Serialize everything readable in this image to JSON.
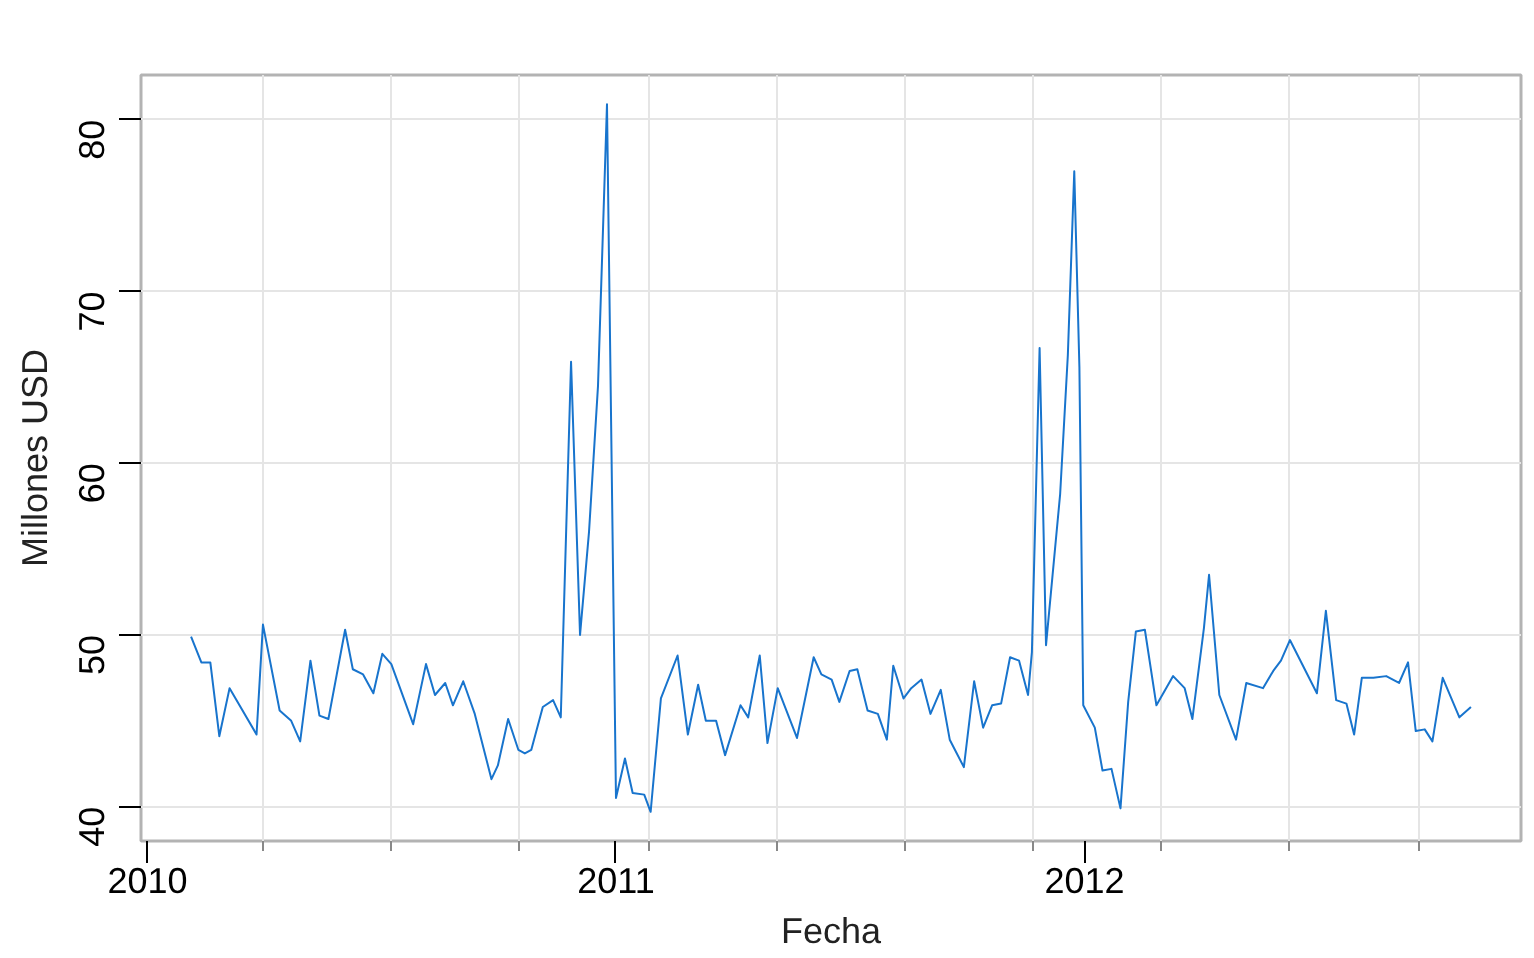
{
  "chart_data": {
    "type": "line",
    "xlabel": "Fecha",
    "ylabel": "Millones USD",
    "color": "#1874cd",
    "grid": true,
    "xlim": [
      "2009-12-27",
      "2012-12-06"
    ],
    "xticks": [
      {
        "value": "2010-01-01",
        "label": "2010"
      },
      {
        "value": "2011-01-01",
        "label": "2011"
      },
      {
        "value": "2012-01-01",
        "label": "2012"
      },
      {
        "value": "2010-04-01",
        "label": null
      },
      {
        "value": "2010-07-10",
        "label": null
      },
      {
        "value": "2010-10-18",
        "label": null
      },
      {
        "value": "2011-01-26",
        "label": null
      },
      {
        "value": "2011-05-06",
        "label": null
      },
      {
        "value": "2011-08-14",
        "label": null
      },
      {
        "value": "2011-11-22",
        "label": null
      },
      {
        "value": "2012-03-01",
        "label": null
      },
      {
        "value": "2012-06-09",
        "label": null
      },
      {
        "value": "2012-09-17",
        "label": null
      }
    ],
    "ylim": [
      38,
      82.6
    ],
    "yticks": [
      40,
      50,
      60,
      70,
      80
    ],
    "x": [
      "2010-02-04",
      "2010-02-12",
      "2010-02-19",
      "2010-02-26",
      "2010-03-06",
      "2010-03-27",
      "2010-04-01",
      "2010-04-14",
      "2010-04-23",
      "2010-04-30",
      "2010-05-08",
      "2010-05-15",
      "2010-05-22",
      "2010-06-04",
      "2010-06-10",
      "2010-06-18",
      "2010-06-26",
      "2010-07-03",
      "2010-07-10",
      "2010-07-27",
      "2010-08-06",
      "2010-08-13",
      "2010-08-21",
      "2010-08-27",
      "2010-09-04",
      "2010-09-13",
      "2010-09-26",
      "2010-10-01",
      "2010-10-09",
      "2010-10-17",
      "2010-10-22",
      "2010-10-27",
      "2010-11-05",
      "2010-11-13",
      "2010-11-19",
      "2010-11-27",
      "2010-12-04",
      "2010-12-11",
      "2010-12-18",
      "2010-12-25",
      "2011-01-01",
      "2011-01-08",
      "2011-01-14",
      "2011-01-23",
      "2011-01-28",
      "2011-02-05",
      "2011-02-18",
      "2011-02-26",
      "2011-03-06",
      "2011-03-12",
      "2011-03-20",
      "2011-03-27",
      "2011-04-08",
      "2011-04-14",
      "2011-04-23",
      "2011-04-29",
      "2011-05-07",
      "2011-05-22",
      "2011-06-04",
      "2011-06-10",
      "2011-06-18",
      "2011-06-24",
      "2011-07-02",
      "2011-07-08",
      "2011-07-16",
      "2011-07-24",
      "2011-07-31",
      "2011-08-05",
      "2011-08-13",
      "2011-08-19",
      "2011-08-27",
      "2011-09-03",
      "2011-09-11",
      "2011-09-18",
      "2011-09-29",
      "2011-10-07",
      "2011-10-14",
      "2011-10-21",
      "2011-10-28",
      "2011-11-04",
      "2011-11-11",
      "2011-11-18",
      "2011-11-21",
      "2011-11-27",
      "2011-12-02",
      "2011-12-13",
      "2011-12-19",
      "2011-12-24",
      "2011-12-28",
      "2011-12-31",
      "2012-01-09",
      "2012-01-15",
      "2012-01-22",
      "2012-01-29",
      "2012-02-04",
      "2012-02-10",
      "2012-02-17",
      "2012-02-26",
      "2012-03-10",
      "2012-03-19",
      "2012-03-25",
      "2012-04-03",
      "2012-04-07",
      "2012-04-15",
      "2012-04-28",
      "2012-05-06",
      "2012-05-19",
      "2012-05-27",
      "2012-06-02",
      "2012-06-09",
      "2012-06-30",
      "2012-07-07",
      "2012-07-15",
      "2012-07-23",
      "2012-07-29",
      "2012-08-04",
      "2012-08-13",
      "2012-08-23",
      "2012-09-02",
      "2012-09-09",
      "2012-09-15",
      "2012-09-22",
      "2012-09-28",
      "2012-10-06",
      "2012-10-19",
      "2012-10-28"
    ],
    "values": [
      49.9,
      48.4,
      48.4,
      44.1,
      46.9,
      44.2,
      50.6,
      45.6,
      45.0,
      43.8,
      48.5,
      45.3,
      45.1,
      50.3,
      48.0,
      47.7,
      46.6,
      48.9,
      48.3,
      44.8,
      48.3,
      46.5,
      47.2,
      45.9,
      47.3,
      45.4,
      41.6,
      42.4,
      45.1,
      43.3,
      43.1,
      43.3,
      45.8,
      46.2,
      45.2,
      65.9,
      50.0,
      56.0,
      64.5,
      80.9,
      40.5,
      42.8,
      40.8,
      40.7,
      39.7,
      46.3,
      48.8,
      44.2,
      47.1,
      45.0,
      45.0,
      43.0,
      45.9,
      45.2,
      48.8,
      43.7,
      46.9,
      44.0,
      48.7,
      47.7,
      47.4,
      46.1,
      47.9,
      48.0,
      45.6,
      45.4,
      43.9,
      48.2,
      46.3,
      46.9,
      47.4,
      45.4,
      46.8,
      43.9,
      42.3,
      47.3,
      44.6,
      45.9,
      46.0,
      48.7,
      48.5,
      46.5,
      49.0,
      66.7,
      49.4,
      58.2,
      66.3,
      77.0,
      65.6,
      45.9,
      44.6,
      42.1,
      42.2,
      39.9,
      46.1,
      50.2,
      50.3,
      45.9,
      47.6,
      46.9,
      45.1,
      50.4,
      53.5,
      46.5,
      43.9,
      47.2,
      46.9,
      47.9,
      48.5,
      49.7,
      46.6,
      51.4,
      46.2,
      46.0,
      44.2,
      47.5,
      47.5,
      47.6,
      47.2,
      48.4,
      44.4,
      44.5,
      43.8,
      47.5,
      45.2,
      45.8
    ]
  }
}
